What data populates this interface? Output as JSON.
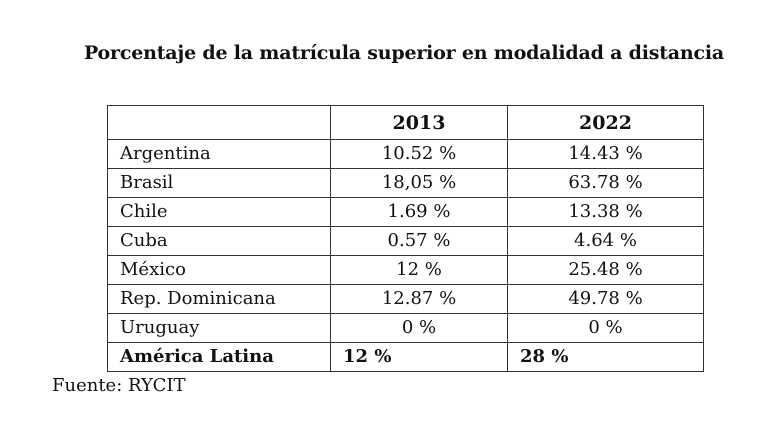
{
  "title": "Porcentaje de la matrícula superior en modalidad a distancia",
  "table": {
    "headers": [
      "",
      "2013",
      "2022"
    ],
    "rows": [
      {
        "country": "Argentina",
        "y2013": "10.52 %",
        "y2022": "14.43 %"
      },
      {
        "country": "Brasil",
        "y2013": "18,05 %",
        "y2022": "63.78 %"
      },
      {
        "country": "Chile",
        "y2013": "1.69 %",
        "y2022": "13.38 %"
      },
      {
        "country": "Cuba",
        "y2013": "0.57 %",
        "y2022": "4.64 %"
      },
      {
        "country": "México",
        "y2013": "12 %",
        "y2022": "25.48 %"
      },
      {
        "country": "Rep. Dominicana",
        "y2013": "12.87 %",
        "y2022": "49.78 %"
      },
      {
        "country": "Uruguay",
        "y2013": "0 %",
        "y2022": "0 %"
      }
    ],
    "total": {
      "country": "América Latina",
      "y2013": "12 %",
      "y2022": "28 %"
    }
  },
  "source": "Fuente: RYCIT"
}
